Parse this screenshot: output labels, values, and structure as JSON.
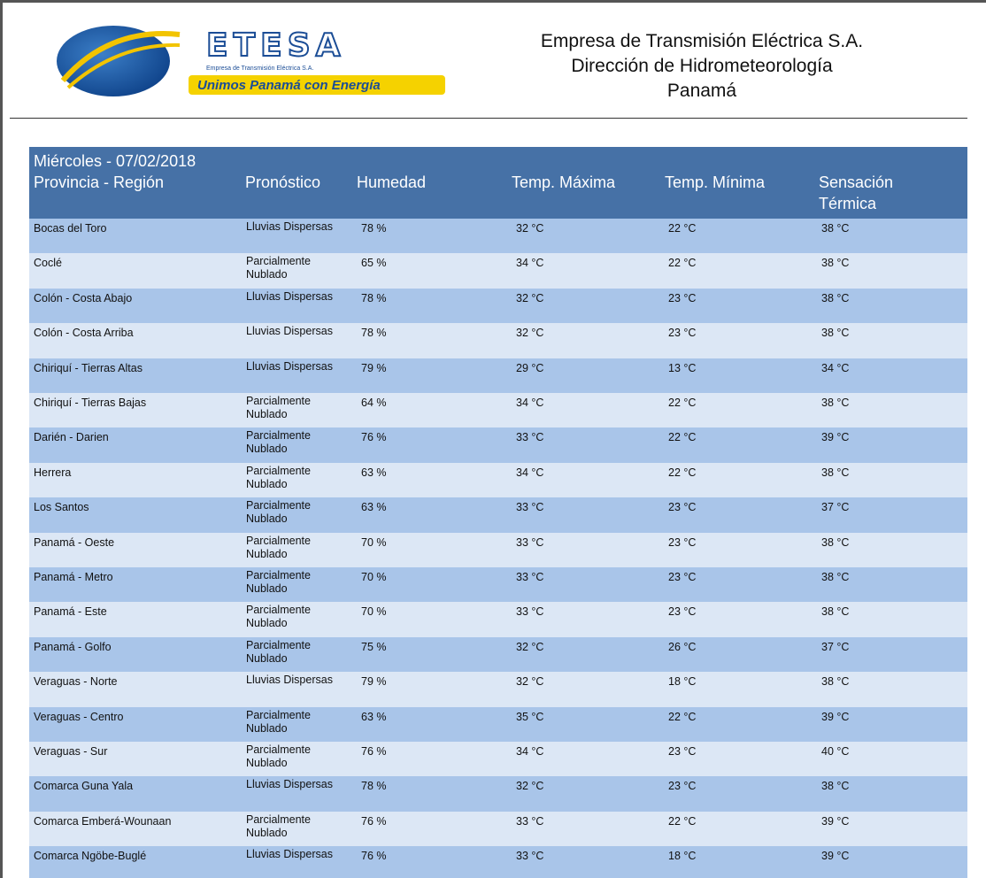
{
  "logo": {
    "wordmark": "ETESA",
    "tagline": "Empresa de Transmisión Eléctrica S.A.",
    "slogan": "Unimos Panamá con Energía"
  },
  "header": {
    "lines": [
      "Empresa de Transmisión Eléctrica S.A.",
      "Dirección de Hidrometeorología",
      "Panamá"
    ]
  },
  "table": {
    "date": "Miércoles - 07/02/2018",
    "columns": [
      "Provincia - Región",
      "Pronóstico",
      "Humedad",
      "Temp. Máxima",
      "Temp. Mínima",
      "Sensación Térmica"
    ],
    "rows": [
      [
        "Bocas del Toro",
        "Lluvias Dispersas",
        "78 %",
        "32 °C",
        "22 °C",
        "38 °C"
      ],
      [
        "Coclé",
        "Parcialmente Nublado",
        "65 %",
        "34 °C",
        "22 °C",
        "38 °C"
      ],
      [
        "Colón - Costa Abajo",
        "Lluvias Dispersas",
        "78 %",
        "32 °C",
        "23 °C",
        "38 °C"
      ],
      [
        "Colón - Costa Arriba",
        "Lluvias Dispersas",
        "78 %",
        "32 °C",
        "23 °C",
        "38 °C"
      ],
      [
        "Chiriquí - Tierras Altas",
        "Lluvias Dispersas",
        "79 %",
        "29 °C",
        "13 °C",
        "34 °C"
      ],
      [
        "Chiriquí - Tierras Bajas",
        "Parcialmente Nublado",
        "64 %",
        "34 °C",
        "22 °C",
        "38 °C"
      ],
      [
        "Darién - Darien",
        "Parcialmente Nublado",
        "76 %",
        "33 °C",
        "22 °C",
        "39 °C"
      ],
      [
        "Herrera",
        "Parcialmente Nublado",
        "63 %",
        "34 °C",
        "22 °C",
        "38 °C"
      ],
      [
        "Los Santos",
        "Parcialmente Nublado",
        "63 %",
        "33 °C",
        "23 °C",
        "37 °C"
      ],
      [
        "Panamá - Oeste",
        "Parcialmente Nublado",
        "70 %",
        "33 °C",
        "23 °C",
        "38 °C"
      ],
      [
        "Panamá - Metro",
        "Parcialmente Nublado",
        "70 %",
        "33 °C",
        "23 °C",
        "38 °C"
      ],
      [
        "Panamá - Este",
        "Parcialmente Nublado",
        "70 %",
        "33 °C",
        "23 °C",
        "38 °C"
      ],
      [
        "Panamá - Golfo",
        "Parcialmente Nublado",
        "75 %",
        "32 °C",
        "26 °C",
        "37 °C"
      ],
      [
        "Veraguas - Norte",
        "Lluvias Dispersas",
        "79 %",
        "32 °C",
        "18 °C",
        "38 °C"
      ],
      [
        "Veraguas - Centro",
        "Parcialmente Nublado",
        "63 %",
        "35 °C",
        "22 °C",
        "39 °C"
      ],
      [
        "Veraguas - Sur",
        "Parcialmente Nublado",
        "76 %",
        "34 °C",
        "23 °C",
        "40 °C"
      ],
      [
        "Comarca Guna Yala",
        "Lluvias Dispersas",
        "78 %",
        "32 °C",
        "23 °C",
        "38 °C"
      ],
      [
        "Comarca Emberá-Wounaan",
        "Parcialmente Nublado",
        "76 %",
        "33 °C",
        "22 °C",
        "39 °C"
      ],
      [
        "Comarca Ngöbe-Buglé",
        "Lluvias Dispersas",
        "76 %",
        "33 °C",
        "18 °C",
        "39 °C"
      ]
    ]
  }
}
